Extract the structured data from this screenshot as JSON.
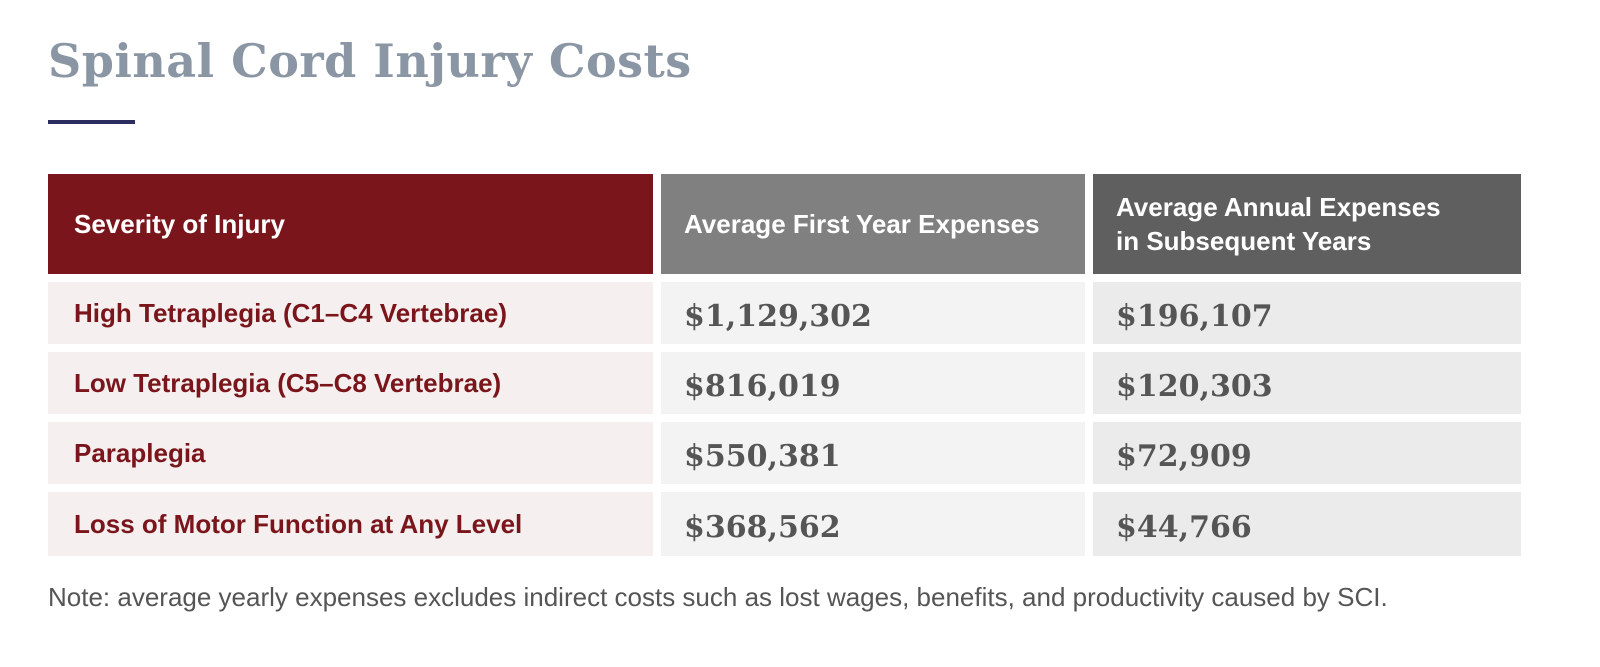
{
  "header": {
    "title": "Spinal Cord Injury Costs"
  },
  "table": {
    "columns": [
      "Severity of Injury",
      "Average First Year Expenses",
      "Average Annual Expenses in Subsequent Years"
    ],
    "rows": [
      [
        "High Tetraplegia (C1–C4 Vertebrae)",
        "$1,129,302",
        "$196,107"
      ],
      [
        "Low Tetraplegia (C5–C8 Vertebrae)",
        "$816,019",
        "$120,303"
      ],
      [
        "Paraplegia",
        "$550,381",
        "$72,909"
      ],
      [
        "Loss of Motor Function at Any Level",
        "$368,562",
        "$44,766"
      ]
    ]
  },
  "note": "Note: average yearly expenses excludes indirect costs such as lost wages, benefits, and productivity caused by SCI."
}
